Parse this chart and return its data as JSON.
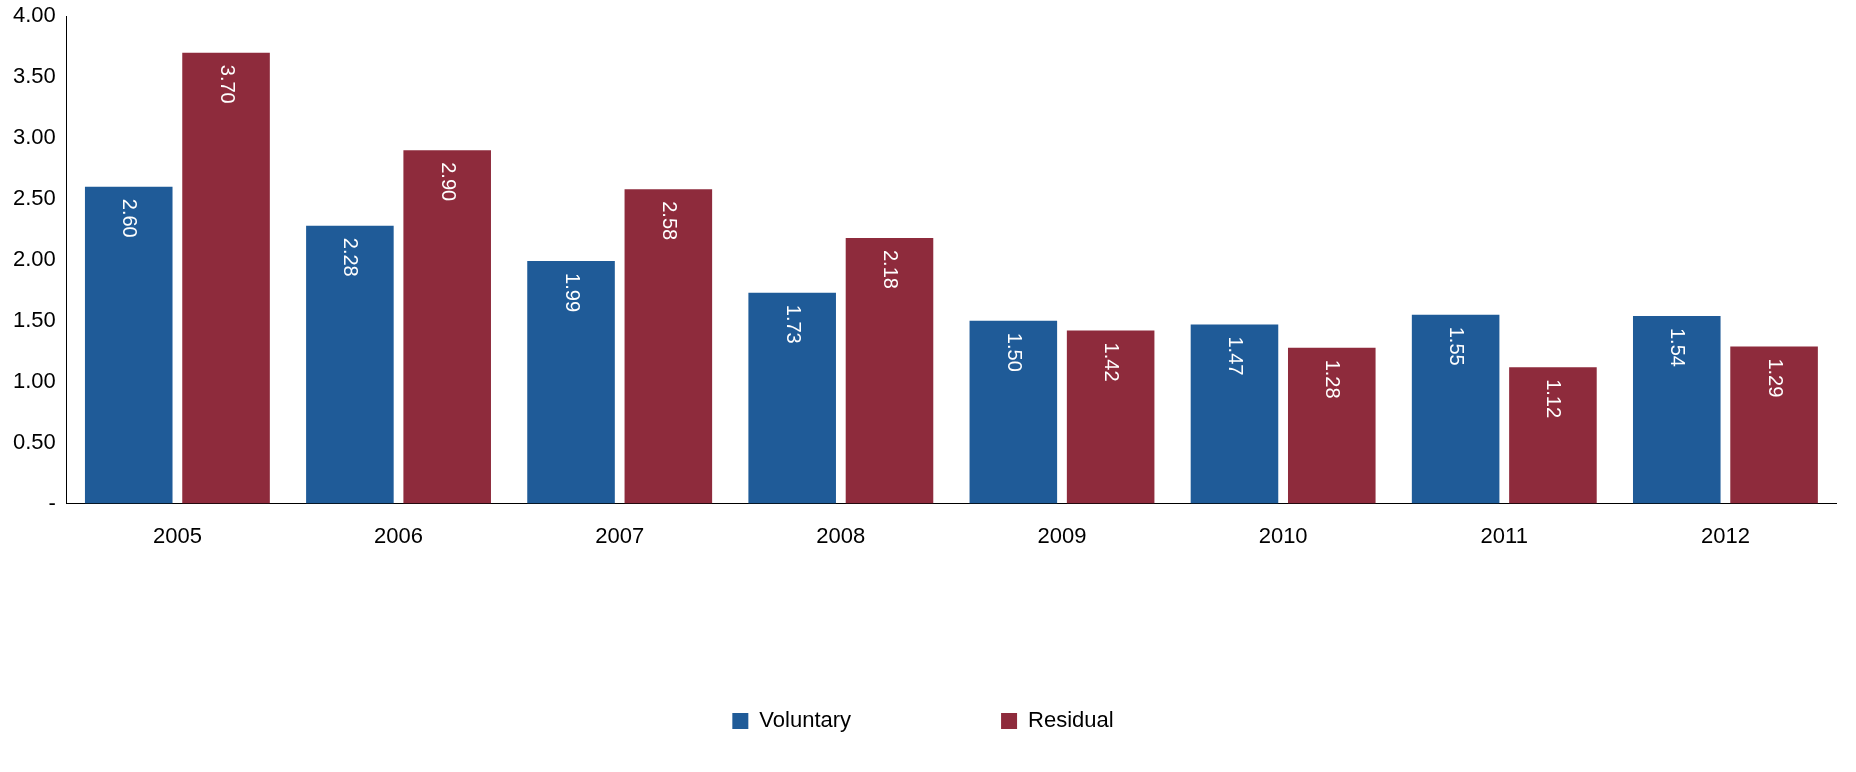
{
  "chart_data": {
    "type": "bar",
    "categories": [
      "2005",
      "2006",
      "2007",
      "2008",
      "2009",
      "2010",
      "2011",
      "2012"
    ],
    "series": [
      {
        "name": "Voluntary",
        "color": "#1f5b98",
        "values": [
          2.6,
          2.28,
          1.99,
          1.73,
          1.5,
          1.47,
          1.55,
          1.54
        ],
        "value_labels": [
          "2.60",
          "2.28",
          "1.99",
          "1.73",
          "1.50",
          "1.47",
          "1.55",
          "1.54"
        ]
      },
      {
        "name": "Residual",
        "color": "#8e2b3c",
        "values": [
          3.7,
          2.9,
          2.58,
          2.18,
          1.42,
          1.28,
          1.12,
          1.29
        ],
        "value_labels": [
          "3.70",
          "2.90",
          "2.58",
          "2.18",
          "1.42",
          "1.28",
          "1.12",
          "1.29"
        ]
      }
    ],
    "ylim": [
      0,
      4
    ],
    "yticks": [
      {
        "value": 0,
        "label": "-"
      },
      {
        "value": 0.5,
        "label": "0.50"
      },
      {
        "value": 1,
        "label": "1.00"
      },
      {
        "value": 1.5,
        "label": "1.50"
      },
      {
        "value": 2,
        "label": "2.00"
      },
      {
        "value": 2.5,
        "label": "2.50"
      },
      {
        "value": 3,
        "label": "3.00"
      },
      {
        "value": 3.5,
        "label": "3.50"
      },
      {
        "value": 4,
        "label": "4.00"
      }
    ],
    "grid": false,
    "legend": "bottom"
  }
}
